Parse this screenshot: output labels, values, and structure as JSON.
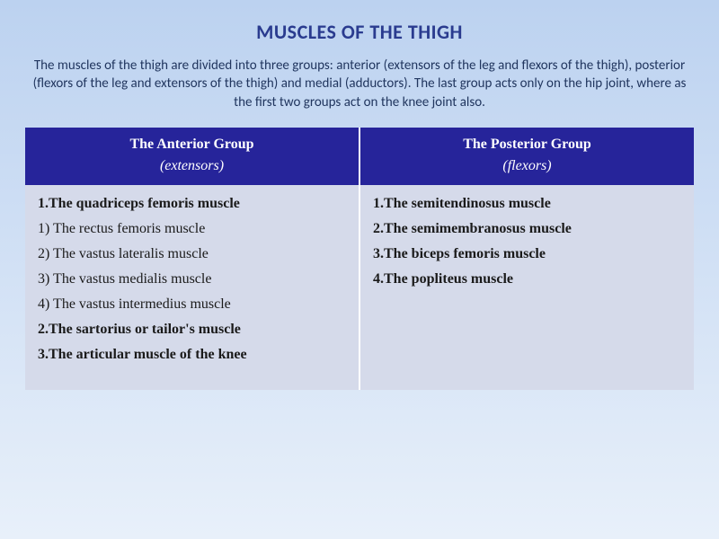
{
  "colors": {
    "background_gradient_top": "#bcd2f0",
    "background_gradient_bottom": "#e8f0fa",
    "title_color": "#2a3b8f",
    "intro_color": "#21365f",
    "header_bg": "#26249a",
    "header_text": "#ffffff",
    "cell_bg": "#d5daea",
    "cell_divider": "#ffffff",
    "cell_text": "#1a1a1a"
  },
  "title": "MUSCLES OF THE THIGH",
  "intro": "The muscles of the thigh are divided into three groups:  anterior (extensors of the leg and flexors of the thigh), posterior (flexors of the leg and extensors of the thigh) and medial (adductors). The last group acts only on the hip joint, where as the first two groups act on the knee joint also.",
  "table": {
    "headers": [
      {
        "title": "The Anterior Group",
        "subtitle": "(extensors)"
      },
      {
        "title": "The Posterior Group",
        "subtitle": "(flexors)"
      }
    ],
    "anterior": [
      {
        "text": "1.The quadriceps femoris muscle",
        "bold": true
      },
      {
        "text": "1) The rectus femoris muscle",
        "bold": false
      },
      {
        "text": "2) The vastus lateralis muscle",
        "bold": false
      },
      {
        "text": "3) The vastus medialis muscle",
        "bold": false
      },
      {
        "text": "4) The vastus intermedius muscle",
        "bold": false
      },
      {
        "text": "2.The sartorius or tailor's muscle",
        "bold": true
      },
      {
        "text": "3.The articular muscle of the knee",
        "bold": true
      }
    ],
    "posterior": [
      {
        "text": "1.The semitendinosus muscle",
        "bold": true
      },
      {
        "text": "2.The semimembranosus muscle",
        "bold": true
      },
      {
        "text": "3.The biceps femoris muscle",
        "bold": true
      },
      {
        "text": "4.The popliteus muscle",
        "bold": true
      }
    ]
  }
}
